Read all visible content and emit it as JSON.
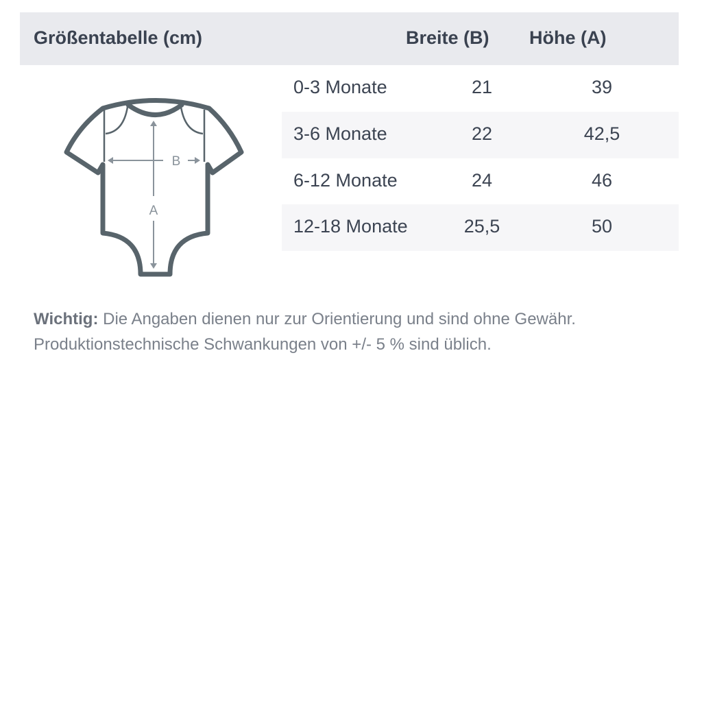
{
  "header": {
    "title": "Größentabelle (cm)",
    "col_width": "Breite (B)",
    "col_height": "Höhe (A)"
  },
  "rows": [
    {
      "size": "0-3 Monate",
      "width": "21",
      "height": "39"
    },
    {
      "size": "3-6 Monate",
      "width": "22",
      "height": "42,5"
    },
    {
      "size": "6-12 Monate",
      "width": "24",
      "height": "46"
    },
    {
      "size": "12-18 Monate",
      "width": "25,5",
      "height": "50"
    }
  ],
  "diagram": {
    "label_b": "B",
    "label_a": "A",
    "outline_color": "#58646b",
    "arrow_color": "#8a939b"
  },
  "note": {
    "bold": "Wichtig:",
    "line1": " Die Angaben dienen nur zur Orientierung und sind ohne Gewähr.",
    "line2": "Produktionstechnische Schwankungen von +/- 5 % sind üblich."
  }
}
